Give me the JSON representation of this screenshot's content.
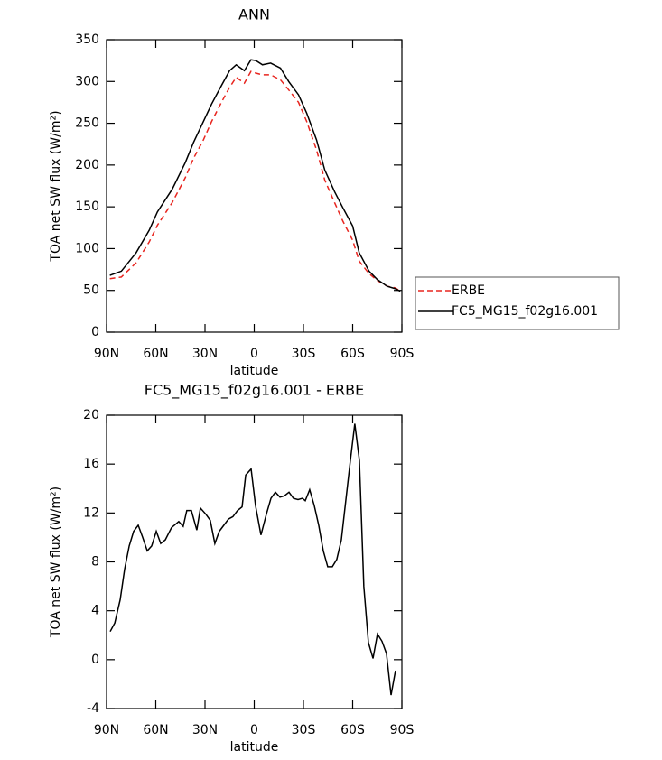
{
  "chart_data": [
    {
      "type": "line",
      "title": "ANN",
      "x_label": "latitude",
      "y_label": "TOA net SW flux (W/m²)",
      "xlim": [
        90,
        -90
      ],
      "xticks": [
        {
          "value": 90,
          "label": "90N"
        },
        {
          "value": 60,
          "label": "60N"
        },
        {
          "value": 30,
          "label": "30N"
        },
        0,
        {
          "value": -30,
          "label": "30S"
        },
        {
          "value": -60,
          "label": "60S"
        },
        {
          "value": -90,
          "label": "90S"
        }
      ],
      "ylim": [
        0,
        350
      ],
      "yticks": [
        0,
        50,
        100,
        150,
        200,
        250,
        300,
        350
      ],
      "legend": "outside-right",
      "x": [
        88,
        81,
        72,
        64,
        59,
        50,
        42,
        37,
        31,
        26,
        20,
        15,
        11,
        6,
        2,
        -1,
        -5,
        -10,
        -16,
        -21,
        -27,
        -32,
        -38,
        -43,
        -49,
        -54,
        -60,
        -64,
        -70,
        -75,
        -81,
        -86,
        -89
      ],
      "series": [
        {
          "name": "ERBE",
          "color": "#e8251f",
          "dash": "dashed",
          "values": [
            64,
            66,
            83,
            108,
            128,
            155,
            185,
            208,
            230,
            252,
            275,
            293,
            305,
            298,
            312,
            310,
            308,
            308,
            302,
            290,
            275,
            252,
            218,
            182,
            155,
            133,
            110,
            85,
            70,
            62,
            55,
            53,
            49
          ]
        },
        {
          "name": "FC5_MG15_f02g16.001",
          "color": "#000000",
          "values": [
            68,
            73,
            95,
            122,
            144,
            171,
            203,
            227,
            252,
            273,
            295,
            313,
            320,
            313,
            326,
            325,
            320,
            322,
            316,
            300,
            284,
            262,
            230,
            194,
            168,
            149,
            127,
            95,
            73,
            63,
            55,
            52,
            49
          ]
        }
      ]
    },
    {
      "type": "line",
      "title": "FC5_MG15_f02g16.001 - ERBE",
      "x_label": "latitude",
      "y_label": "TOA net SW flux (W/m²)",
      "xlim": [
        90,
        -90
      ],
      "xticks": [
        {
          "value": 90,
          "label": "90N"
        },
        {
          "value": 60,
          "label": "60N"
        },
        {
          "value": 30,
          "label": "30N"
        },
        0,
        {
          "value": -30,
          "label": "30S"
        },
        {
          "value": -60,
          "label": "60S"
        },
        {
          "value": -90,
          "label": "90S"
        }
      ],
      "ylim": [
        -4,
        20
      ],
      "yticks": [
        -4,
        0,
        4,
        8,
        12,
        16,
        20
      ],
      "x": [
        87.8,
        85,
        81.7,
        79,
        76.2,
        73.5,
        70.7,
        68,
        65.2,
        62.5,
        59.7,
        57,
        54.2,
        50.4,
        46,
        43.3,
        41.1,
        38.3,
        35,
        32.8,
        29.5,
        26.8,
        24,
        21.3,
        18.5,
        15.7,
        13,
        10.2,
        7.4,
        5.2,
        1.9,
        -0.8,
        -4.1,
        -7.4,
        -10.2,
        -12.9,
        -15.7,
        -18.4,
        -21.2,
        -23.9,
        -26.7,
        -29.4,
        -31.1,
        -33.8,
        -36.6,
        -39.3,
        -42.1,
        -44.8,
        -47.6,
        -50.3,
        -53.1,
        -55.8,
        -58.6,
        -61.3,
        -64.1,
        -66.8,
        -69.6,
        -72.4,
        -75.1,
        -77.9,
        -80.6,
        -83.4,
        -86.1
      ],
      "series": [
        {
          "name": "FC5_MG15_f02g16.001 - ERBE",
          "color": "#000000",
          "values": [
            2.3,
            3.0,
            4.9,
            7.4,
            9.3,
            10.5,
            11.0,
            10.0,
            8.9,
            9.3,
            10.5,
            9.5,
            9.8,
            10.8,
            11.3,
            10.9,
            12.2,
            12.2,
            10.6,
            12.4,
            11.9,
            11.4,
            9.5,
            10.5,
            11.0,
            11.5,
            11.7,
            12.2,
            12.5,
            15.1,
            15.6,
            12.6,
            10.2,
            11.9,
            13.2,
            13.7,
            13.3,
            13.4,
            13.7,
            13.2,
            13.1,
            13.2,
            13.0,
            13.9,
            12.6,
            11.0,
            8.9,
            7.6,
            7.6,
            8.2,
            9.8,
            13.0,
            16.3,
            19.3,
            16.3,
            6.0,
            1.4,
            0.1,
            2.1,
            1.5,
            0.5,
            -2.9,
            -0.9
          ]
        }
      ]
    }
  ]
}
